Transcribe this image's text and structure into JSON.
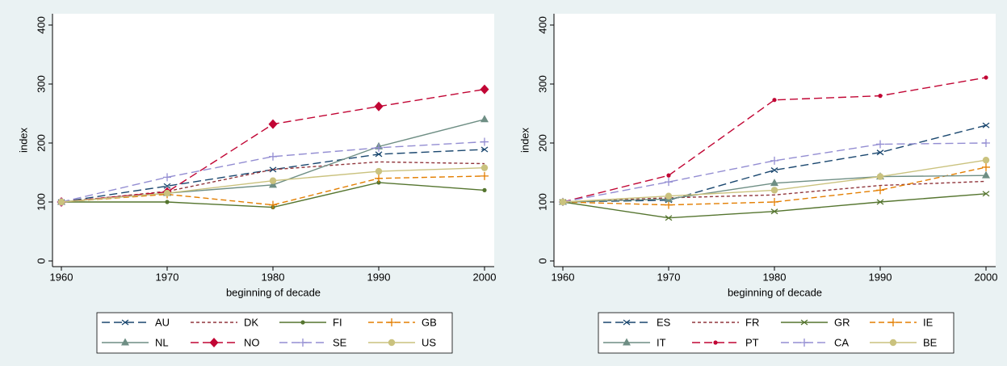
{
  "chart_data": [
    {
      "type": "line",
      "xlabel": "beginning of decade",
      "ylabel": "index",
      "x": [
        1960,
        1970,
        1980,
        1990,
        2000
      ],
      "xlim": [
        1960,
        2000
      ],
      "xticks": [
        1960,
        1970,
        1980,
        1990,
        2000
      ],
      "ylim": [
        0,
        400
      ],
      "yticks": [
        0,
        100,
        200,
        300,
        400
      ],
      "series": [
        {
          "name": "AU",
          "color": "#1a476f",
          "marker": "x",
          "dash": "long",
          "values": [
            100,
            127,
            155,
            181,
            189
          ]
        },
        {
          "name": "DK",
          "color": "#90353b",
          "marker": "none",
          "dash": "short",
          "values": [
            100,
            118,
            155,
            168,
            165
          ]
        },
        {
          "name": "FI",
          "color": "#55752f",
          "marker": "dot",
          "dash": "solid",
          "values": [
            100,
            100,
            91,
            133,
            120
          ]
        },
        {
          "name": "GB",
          "color": "#e37e00",
          "marker": "plus",
          "dash": "medium",
          "values": [
            100,
            113,
            95,
            140,
            144
          ]
        },
        {
          "name": "NL",
          "color": "#6e8e84",
          "marker": "triangle",
          "dash": "solid",
          "values": [
            100,
            115,
            129,
            194,
            240
          ]
        },
        {
          "name": "NO",
          "color": "#c10534",
          "marker": "diamond",
          "dash": "long",
          "values": [
            100,
            117,
            232,
            262,
            291
          ]
        },
        {
          "name": "SE",
          "color": "#938dd2",
          "marker": "plus",
          "dash": "long",
          "values": [
            100,
            142,
            177,
            192,
            202
          ]
        },
        {
          "name": "US",
          "color": "#cac27e",
          "marker": "circle",
          "dash": "solid",
          "values": [
            100,
            115,
            136,
            152,
            158
          ]
        }
      ]
    },
    {
      "type": "line",
      "xlabel": "beginning of decade",
      "ylabel": "index",
      "x": [
        1960,
        1970,
        1980,
        1990,
        2000
      ],
      "xlim": [
        1960,
        2000
      ],
      "xticks": [
        1960,
        1970,
        1980,
        1990,
        2000
      ],
      "ylim": [
        0,
        400
      ],
      "yticks": [
        0,
        100,
        200,
        300,
        400
      ],
      "series": [
        {
          "name": "ES",
          "color": "#1a476f",
          "marker": "x",
          "dash": "long",
          "values": [
            100,
            103,
            154,
            184,
            230
          ]
        },
        {
          "name": "FR",
          "color": "#90353b",
          "marker": "none",
          "dash": "short",
          "values": [
            100,
            107,
            112,
            128,
            135
          ]
        },
        {
          "name": "GR",
          "color": "#55752f",
          "marker": "x",
          "dash": "solid",
          "values": [
            100,
            73,
            84,
            100,
            114
          ]
        },
        {
          "name": "IE",
          "color": "#e37e00",
          "marker": "plus",
          "dash": "medium",
          "values": [
            100,
            95,
            100,
            120,
            159
          ]
        },
        {
          "name": "IT",
          "color": "#6e8e84",
          "marker": "triangle",
          "dash": "solid",
          "values": [
            100,
            105,
            132,
            143,
            145
          ]
        },
        {
          "name": "PT",
          "color": "#c10534",
          "marker": "dot",
          "dash": "long",
          "values": [
            100,
            145,
            273,
            280,
            311
          ]
        },
        {
          "name": "CA",
          "color": "#938dd2",
          "marker": "plus",
          "dash": "long",
          "values": [
            100,
            134,
            170,
            198,
            200
          ]
        },
        {
          "name": "BE",
          "color": "#cac27e",
          "marker": "circle",
          "dash": "solid",
          "values": [
            100,
            110,
            120,
            143,
            171
          ]
        }
      ]
    }
  ]
}
